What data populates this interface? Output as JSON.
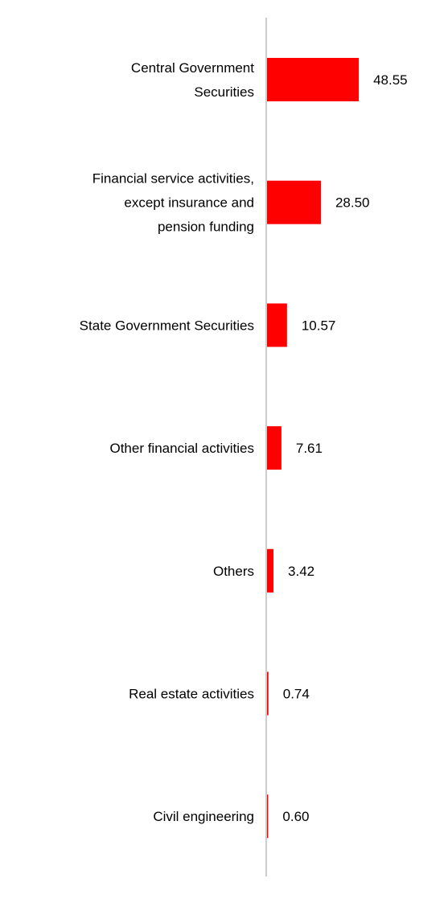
{
  "chart_data": {
    "type": "bar",
    "orientation": "horizontal",
    "categories": [
      [
        "Central Government",
        "Securities"
      ],
      [
        "Financial service activities,",
        "except insurance and",
        "pension funding"
      ],
      [
        "State Government Securities"
      ],
      [
        "Other financial activities"
      ],
      [
        "Others"
      ],
      [
        "Real estate activities"
      ],
      [
        "Civil engineering"
      ]
    ],
    "values": [
      48.55,
      28.5,
      10.57,
      7.61,
      3.42,
      0.74,
      0.6
    ],
    "value_labels": [
      "48.55",
      "28.50",
      "10.57",
      "7.61",
      "3.42",
      "0.74",
      "0.60"
    ],
    "title": "",
    "xlabel": "",
    "ylabel": "",
    "xlim": [
      0,
      100
    ],
    "grid": false,
    "legend": "none",
    "colors": {
      "bar": "#ff0000",
      "axis": "#cccccc",
      "text": "#000000"
    }
  }
}
